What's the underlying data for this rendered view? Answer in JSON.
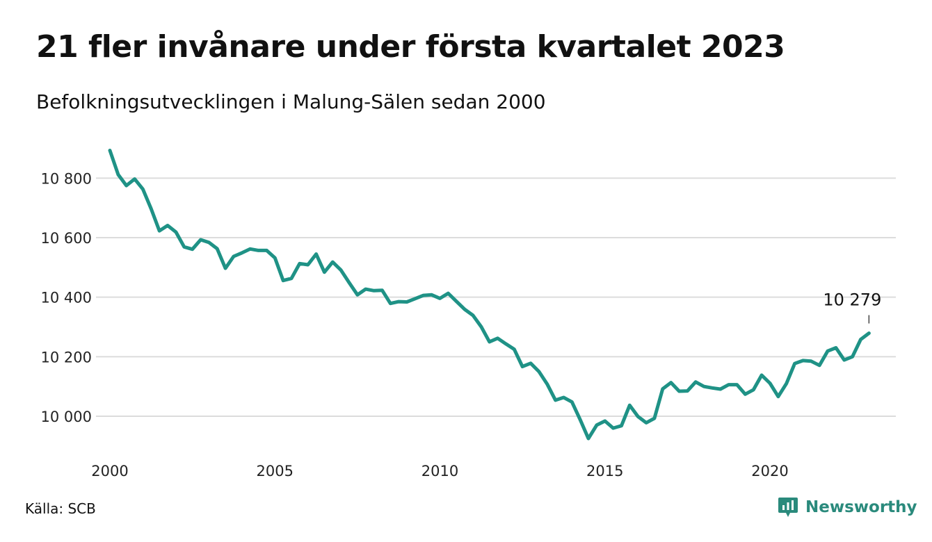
{
  "header": {
    "title": "21 fler invånare under första kvartalet 2023",
    "subtitle": "Befolkningsutvecklingen i Malung-Sälen sedan 2000"
  },
  "footer": {
    "source": "Källa: SCB",
    "brand": "Newsworthy",
    "brand_color": "#2a8a7c"
  },
  "chart_data": {
    "type": "line",
    "line_color": "#1f9286",
    "grid": true,
    "ylim": [
      9900,
      10900
    ],
    "yticks": [
      10000,
      10200,
      10400,
      10600,
      10800
    ],
    "ytick_labels": [
      "10 000",
      "10 200",
      "10 400",
      "10 600",
      "10 800"
    ],
    "xlim": [
      2000,
      2023.25
    ],
    "xticks": [
      2000,
      2005,
      2010,
      2015,
      2020
    ],
    "xtick_labels": [
      "2000",
      "2005",
      "2010",
      "2015",
      "2020"
    ],
    "annotation": {
      "text": "10 279",
      "x": 2023.0,
      "y": 10279
    },
    "series": [
      {
        "x": [
          2000.0,
          2000.25,
          2000.5,
          2000.75,
          2001.0,
          2001.25,
          2001.5,
          2001.75,
          2002.0,
          2002.25,
          2002.5,
          2002.75,
          2003.0,
          2003.25,
          2003.5,
          2003.75,
          2004.0,
          2004.25,
          2004.5,
          2004.75,
          2005.0,
          2005.25,
          2005.5,
          2005.75,
          2006.0,
          2006.25,
          2006.5,
          2006.75,
          2007.0,
          2007.25,
          2007.5,
          2007.75,
          2008.0,
          2008.25,
          2008.5,
          2008.75,
          2009.0,
          2009.25,
          2009.5,
          2009.75,
          2010.0,
          2010.25,
          2010.5,
          2010.75,
          2011.0,
          2011.25,
          2011.5,
          2011.75,
          2012.0,
          2012.25,
          2012.5,
          2012.75,
          2013.0,
          2013.25,
          2013.5,
          2013.75,
          2014.0,
          2014.25,
          2014.5,
          2014.75,
          2015.0,
          2015.25,
          2015.5,
          2015.75,
          2016.0,
          2016.25,
          2016.5,
          2016.75,
          2017.0,
          2017.25,
          2017.5,
          2017.75,
          2018.0,
          2018.25,
          2018.5,
          2018.75,
          2019.0,
          2019.25,
          2019.5,
          2019.75,
          2020.0,
          2020.25,
          2020.5,
          2020.75,
          2021.0,
          2021.25,
          2021.5,
          2021.75,
          2022.0,
          2022.25,
          2022.5,
          2022.75,
          2023.0
        ],
        "y": [
          10893,
          10812,
          10775,
          10797,
          10763,
          10697,
          10623,
          10641,
          10619,
          10569,
          10561,
          10593,
          10584,
          10563,
          10497,
          10537,
          10549,
          10562,
          10557,
          10557,
          10532,
          10456,
          10463,
          10513,
          10509,
          10545,
          10484,
          10518,
          10491,
          10449,
          10408,
          10427,
          10422,
          10423,
          10379,
          10385,
          10384,
          10395,
          10406,
          10408,
          10396,
          10413,
          10386,
          10359,
          10339,
          10301,
          10250,
          10262,
          10243,
          10225,
          10167,
          10178,
          10150,
          10108,
          10054,
          10063,
          10048,
          9988,
          9925,
          9970,
          9984,
          9960,
          9968,
          10037,
          9999,
          9978,
          9993,
          10092,
          10113,
          10084,
          10085,
          10115,
          10100,
          10095,
          10091,
          10106,
          10106,
          10074,
          10089,
          10138,
          10111,
          10066,
          10110,
          10177,
          10187,
          10185,
          10171,
          10219,
          10230,
          10189,
          10200,
          10258,
          10279
        ]
      }
    ]
  }
}
